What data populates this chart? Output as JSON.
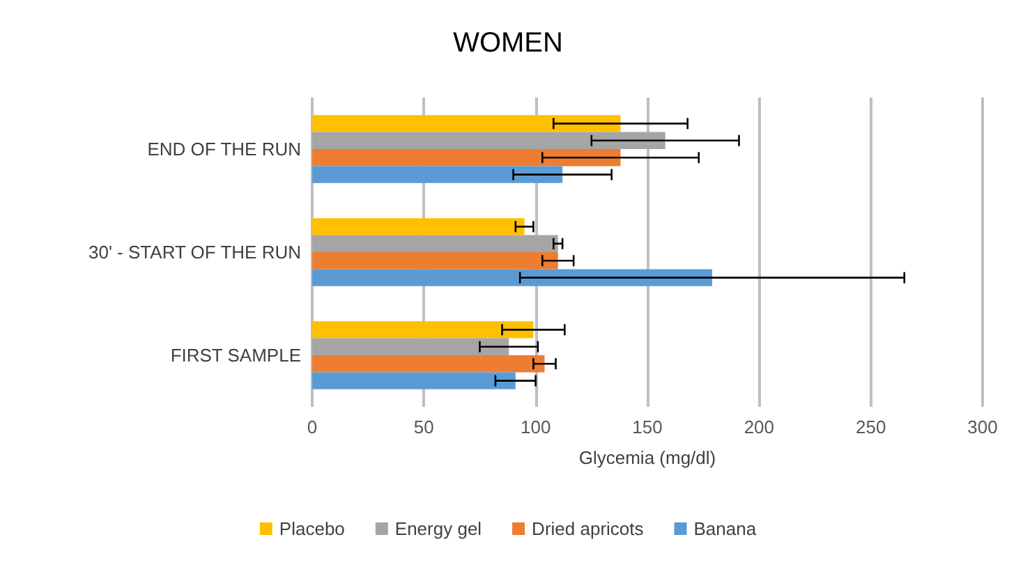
{
  "chart_data": {
    "type": "bar",
    "orientation": "horizontal",
    "title": "WOMEN",
    "xlabel": "Glycemia (mg/dl)",
    "categories": [
      "END OF THE RUN",
      "30' - START OF THE RUN",
      "FIRST SAMPLE"
    ],
    "series": [
      {
        "name": "Placebo",
        "color": "#ffc000",
        "values": [
          138,
          95,
          99
        ],
        "errors": [
          30,
          4,
          14
        ]
      },
      {
        "name": "Energy gel",
        "color": "#a5a5a5",
        "values": [
          158,
          110,
          88
        ],
        "errors": [
          33,
          2,
          13
        ]
      },
      {
        "name": "Dried apricots",
        "color": "#ed7d31",
        "values": [
          138,
          110,
          104
        ],
        "errors": [
          35,
          7,
          5
        ]
      },
      {
        "name": "Banana",
        "color": "#5b9bd5",
        "values": [
          112,
          179,
          91
        ],
        "errors": [
          22,
          86,
          9
        ]
      }
    ],
    "xlim": [
      0,
      300
    ],
    "xticks": [
      0,
      50,
      100,
      150,
      200,
      250,
      300
    ],
    "grid": "x",
    "legend": "bottom"
  }
}
